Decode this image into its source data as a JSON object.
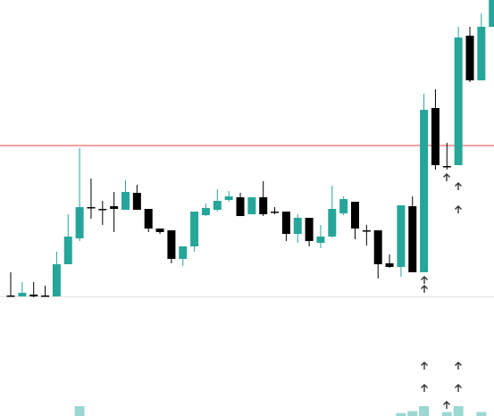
{
  "chart_data": {
    "type": "candlestick",
    "open": [
      135,
      134,
      136,
      135,
      134,
      170,
      199,
      234,
      232,
      235,
      231,
      250,
      232,
      210,
      208,
      176,
      190,
      225,
      231,
      242,
      245,
      226,
      245,
      229,
      229,
      204,
      222,
      194,
      201,
      227,
      240,
      208,
      208,
      171,
      167,
      235,
      161,
      345,
      280,
      281,
      426,
      376,
      436
    ],
    "high": [
      161,
      150,
      150,
      146,
      184,
      226,
      300,
      266,
      241,
      251,
      264,
      259,
      232,
      210,
      208,
      190,
      229,
      238,
      254,
      252,
      250,
      245,
      263,
      234,
      229,
      226,
      222,
      214,
      258,
      246,
      240,
      214,
      208,
      181,
      236,
      246,
      361,
      366,
      306,
      436,
      436,
      451,
      466
    ],
    "low": [
      134,
      134,
      133,
      134,
      134,
      170,
      196,
      221,
      214,
      206,
      231,
      231,
      206,
      204,
      171,
      168,
      184,
      224,
      229,
      240,
      224,
      226,
      224,
      226,
      196,
      194,
      190,
      188,
      200,
      225,
      198,
      191,
      154,
      166,
      156,
      161,
      161,
      276,
      276,
      281,
      374,
      376,
      436
    ],
    "close": [
      135,
      138,
      134,
      135,
      170,
      201,
      234,
      234,
      232,
      232,
      251,
      231,
      210,
      206,
      176,
      190,
      229,
      233,
      241,
      246,
      224,
      245,
      226,
      229,
      204,
      222,
      196,
      201,
      232,
      243,
      210,
      208,
      170,
      167,
      236,
      161,
      343,
      281,
      280,
      424,
      376,
      436,
      466
    ],
    "volume": [
      null,
      null,
      null,
      null,
      null,
      null,
      10,
      null,
      null,
      null,
      null,
      null,
      null,
      null,
      null,
      null,
      null,
      null,
      null,
      null,
      null,
      null,
      null,
      null,
      null,
      null,
      null,
      null,
      null,
      null,
      null,
      null,
      null,
      null,
      3,
      5,
      10,
      null,
      4,
      10,
      null,
      4,
      null
    ],
    "up_color": "#26a69a",
    "down_color": "#000000",
    "volume_color": "#9ad8d1",
    "ylim": [
      0,
      466
    ],
    "price_line": 303,
    "price_line_color": "#ef6b6b"
  }
}
